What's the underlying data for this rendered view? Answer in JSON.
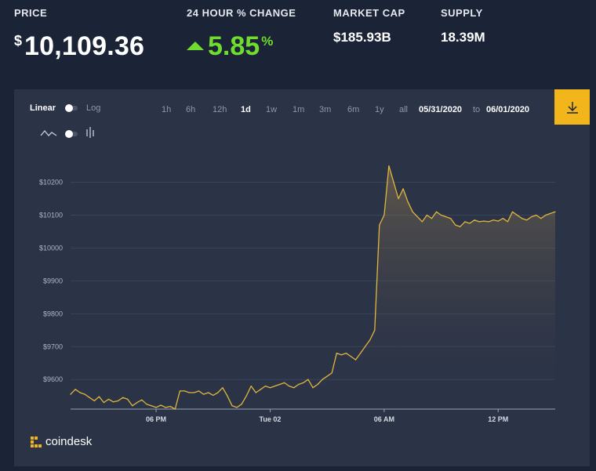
{
  "stats": {
    "price_label": "PRICE",
    "price_currency": "$",
    "price_value": "10,109.36",
    "change_label": "24 HOUR % CHANGE",
    "change_value": "5.85",
    "change_unit": "%",
    "marketcap_label": "MARKET CAP",
    "marketcap_value": "$185.93B",
    "supply_label": "SUPPLY",
    "supply_value": "18.39M"
  },
  "toolbar": {
    "scale_linear": "Linear",
    "scale_log": "Log",
    "ranges": [
      "1h",
      "6h",
      "12h",
      "1d",
      "1w",
      "1m",
      "3m",
      "6m",
      "1y",
      "all"
    ],
    "active_range": "1d",
    "date_from": "05/31/2020",
    "date_to_word": "to",
    "date_to": "06/01/2020"
  },
  "brand": {
    "name": "coindesk"
  },
  "colors": {
    "accent": "#f2b51b",
    "positive": "#6fdc2f",
    "line": "#e2b53e",
    "panel": "#2b3347",
    "page": "#1b2336"
  },
  "chart_data": {
    "type": "area",
    "ylim": [
      9510,
      10280
    ],
    "y_ticks": [
      9600,
      9700,
      9800,
      9900,
      10000,
      10100,
      10200
    ],
    "y_tick_labels": [
      "$9600",
      "$9700",
      "$9800",
      "$9900",
      "$10000",
      "$10100",
      "$10200"
    ],
    "x_ticks": [
      {
        "x": 4.5,
        "label": "06 PM"
      },
      {
        "x": 10.5,
        "label": "Tue 02"
      },
      {
        "x": 16.5,
        "label": "06 AM"
      },
      {
        "x": 22.5,
        "label": "12 PM"
      }
    ],
    "xlim": [
      0,
      25.5
    ],
    "grid": true,
    "series": [
      {
        "x": [
          0,
          0.25,
          0.5,
          0.75,
          1,
          1.25,
          1.5,
          1.75,
          2,
          2.25,
          2.5,
          2.75,
          3,
          3.25,
          3.5,
          3.75,
          4,
          4.25,
          4.5,
          4.75,
          5,
          5.25,
          5.5,
          5.75,
          6,
          6.25,
          6.5,
          6.75,
          7,
          7.25,
          7.5,
          7.75,
          8,
          8.25,
          8.5,
          8.75,
          9,
          9.25,
          9.5,
          9.75,
          10,
          10.25,
          10.5,
          10.75,
          11,
          11.25,
          11.5,
          11.75,
          12,
          12.25,
          12.5,
          12.75,
          13,
          13.25,
          13.5,
          13.75,
          14,
          14.25,
          14.5,
          14.75,
          15,
          15.25,
          15.5,
          15.75,
          16,
          16.25,
          16.5,
          16.75,
          17,
          17.25,
          17.5,
          17.75,
          18,
          18.25,
          18.5,
          18.75,
          19,
          19.25,
          19.5,
          19.75,
          20,
          20.25,
          20.5,
          20.75,
          21,
          21.25,
          21.5,
          21.75,
          22,
          22.25,
          22.5,
          22.75,
          23,
          23.25,
          23.5,
          23.75,
          24,
          24.25,
          24.5,
          24.75,
          25,
          25.25,
          25.5
        ],
        "values": [
          9555,
          9570,
          9560,
          9555,
          9545,
          9535,
          9548,
          9530,
          9540,
          9532,
          9535,
          9545,
          9540,
          9520,
          9530,
          9538,
          9525,
          9520,
          9515,
          9522,
          9515,
          9518,
          9510,
          9565,
          9565,
          9560,
          9560,
          9565,
          9555,
          9560,
          9552,
          9560,
          9575,
          9550,
          9520,
          9515,
          9525,
          9550,
          9580,
          9560,
          9570,
          9580,
          9575,
          9580,
          9585,
          9590,
          9580,
          9575,
          9585,
          9590,
          9600,
          9575,
          9585,
          9600,
          9610,
          9620,
          9680,
          9675,
          9680,
          9670,
          9660,
          9680,
          9700,
          9720,
          9750,
          10070,
          10100,
          10250,
          10200,
          10150,
          10180,
          10140,
          10110,
          10095,
          10080,
          10100,
          10090,
          10110,
          10100,
          10095,
          10090,
          10070,
          10065,
          10080,
          10075,
          10085,
          10080,
          10082,
          10080,
          10085,
          10082,
          10090,
          10080,
          10110,
          10100,
          10090,
          10085,
          10095,
          10100,
          10090,
          10100,
          10105,
          10110
        ]
      }
    ]
  }
}
